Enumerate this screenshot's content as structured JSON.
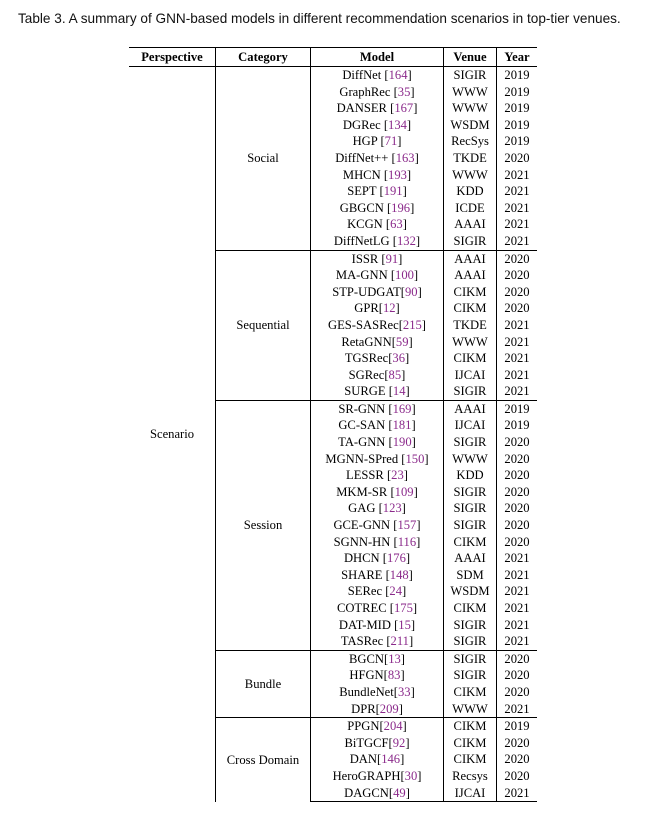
{
  "caption": "Table 3.  A summary of GNN-based models in different recommendation scenarios in top-tier venues.",
  "headers": {
    "perspective": "Perspective",
    "category": "Category",
    "model": "Model",
    "venue": "Venue",
    "year": "Year"
  },
  "perspective": "Scenario",
  "groups": [
    {
      "category": "Social",
      "rows": [
        {
          "name": "DiffNet",
          "ref": "164",
          "sep": " ",
          "venue": "SIGIR",
          "year": "2019"
        },
        {
          "name": "GraphRec",
          "ref": "35",
          "sep": " ",
          "venue": "WWW",
          "year": "2019"
        },
        {
          "name": "DANSER",
          "ref": "167",
          "sep": " ",
          "venue": "WWW",
          "year": "2019"
        },
        {
          "name": "DGRec",
          "ref": "134",
          "sep": " ",
          "venue": "WSDM",
          "year": "2019"
        },
        {
          "name": "HGP",
          "ref": "71",
          "sep": " ",
          "venue": "RecSys",
          "year": "2019"
        },
        {
          "name": "DiffNet++",
          "ref": "163",
          "sep": " ",
          "venue": "TKDE",
          "year": "2020"
        },
        {
          "name": "MHCN",
          "ref": "193",
          "sep": " ",
          "venue": "WWW",
          "year": "2021"
        },
        {
          "name": "SEPT",
          "ref": "191",
          "sep": " ",
          "venue": "KDD",
          "year": "2021"
        },
        {
          "name": "GBGCN",
          "ref": "196",
          "sep": " ",
          "venue": "ICDE",
          "year": "2021"
        },
        {
          "name": "KCGN",
          "ref": "63",
          "sep": " ",
          "venue": "AAAI",
          "year": "2021"
        },
        {
          "name": "DiffNetLG",
          "ref": "132",
          "sep": " ",
          "venue": "SIGIR",
          "year": "2021"
        }
      ]
    },
    {
      "category": "Sequential",
      "rows": [
        {
          "name": "ISSR",
          "ref": "91",
          "sep": " ",
          "venue": "AAAI",
          "year": "2020"
        },
        {
          "name": "MA-GNN",
          "ref": "100",
          "sep": " ",
          "venue": "AAAI",
          "year": "2020"
        },
        {
          "name": "STP-UDGAT",
          "ref": "90",
          "sep": "",
          "venue": "CIKM",
          "year": "2020"
        },
        {
          "name": "GPR",
          "ref": "12",
          "sep": "",
          "venue": "CIKM",
          "year": "2020"
        },
        {
          "name": "GES-SASRec",
          "ref": "215",
          "sep": "",
          "venue": "TKDE",
          "year": "2021"
        },
        {
          "name": "RetaGNN",
          "ref": "59",
          "sep": "",
          "venue": "WWW",
          "year": "2021"
        },
        {
          "name": "TGSRec",
          "ref": "36",
          "sep": "",
          "venue": "CIKM",
          "year": "2021"
        },
        {
          "name": "SGRec",
          "ref": "85",
          "sep": "",
          "venue": "IJCAI",
          "year": "2021"
        },
        {
          "name": "SURGE",
          "ref": "14",
          "sep": " ",
          "venue": "SIGIR",
          "year": "2021"
        }
      ]
    },
    {
      "category": "Session",
      "rows": [
        {
          "name": "SR-GNN",
          "ref": "169",
          "sep": " ",
          "venue": "AAAI",
          "year": "2019"
        },
        {
          "name": "GC-SAN",
          "ref": "181",
          "sep": " ",
          "venue": "IJCAI",
          "year": "2019"
        },
        {
          "name": "TA-GNN",
          "ref": "190",
          "sep": " ",
          "venue": "SIGIR",
          "year": "2020"
        },
        {
          "name": "MGNN-SPred",
          "ref": "150",
          "sep": " ",
          "venue": "WWW",
          "year": "2020"
        },
        {
          "name": "LESSR",
          "ref": "23",
          "sep": " ",
          "venue": "KDD",
          "year": "2020"
        },
        {
          "name": "MKM-SR",
          "ref": "109",
          "sep": " ",
          "venue": "SIGIR",
          "year": "2020"
        },
        {
          "name": "GAG",
          "ref": "123",
          "sep": " ",
          "venue": "SIGIR",
          "year": "2020"
        },
        {
          "name": "GCE-GNN",
          "ref": "157",
          "sep": " ",
          "venue": "SIGIR",
          "year": "2020"
        },
        {
          "name": "SGNN-HN",
          "ref": "116",
          "sep": " ",
          "venue": "CIKM",
          "year": "2020"
        },
        {
          "name": "DHCN",
          "ref": "176",
          "sep": " ",
          "venue": "AAAI",
          "year": "2021"
        },
        {
          "name": "SHARE",
          "ref": "148",
          "sep": " ",
          "venue": "SDM",
          "year": "2021"
        },
        {
          "name": "SERec",
          "ref": "24",
          "sep": " ",
          "venue": "WSDM",
          "year": "2021"
        },
        {
          "name": "COTREC",
          "ref": "175",
          "sep": " ",
          "venue": "CIKM",
          "year": "2021"
        },
        {
          "name": "DAT-MID",
          "ref": "15",
          "sep": " ",
          "venue": "SIGIR",
          "year": "2021"
        },
        {
          "name": "TASRec",
          "ref": "211",
          "sep": " ",
          "venue": "SIGIR",
          "year": "2021"
        }
      ]
    },
    {
      "category": "Bundle",
      "rows": [
        {
          "name": "BGCN",
          "ref": "13",
          "sep": "",
          "venue": "SIGIR",
          "year": "2020"
        },
        {
          "name": "HFGN",
          "ref": "83",
          "sep": "",
          "venue": "SIGIR",
          "year": "2020"
        },
        {
          "name": "BundleNet",
          "ref": "33",
          "sep": "",
          "venue": "CIKM",
          "year": "2020"
        },
        {
          "name": "DPR",
          "ref": "209",
          "sep": "",
          "venue": "WWW",
          "year": "2021"
        }
      ]
    },
    {
      "category": "Cross Domain",
      "rows": [
        {
          "name": "PPGN",
          "ref": "204",
          "sep": "",
          "venue": "CIKM",
          "year": "2019"
        },
        {
          "name": "BiTGCF",
          "ref": "92",
          "sep": "",
          "venue": "CIKM",
          "year": "2020"
        },
        {
          "name": "DAN",
          "ref": "146",
          "sep": "",
          "venue": "CIKM",
          "year": "2020"
        },
        {
          "name": "HeroGRAPH",
          "ref": "30",
          "sep": "",
          "venue": "Recsys",
          "year": "2020"
        },
        {
          "name": "DAGCN",
          "ref": "49",
          "sep": "",
          "venue": "IJCAI",
          "year": "2021"
        }
      ]
    }
  ]
}
